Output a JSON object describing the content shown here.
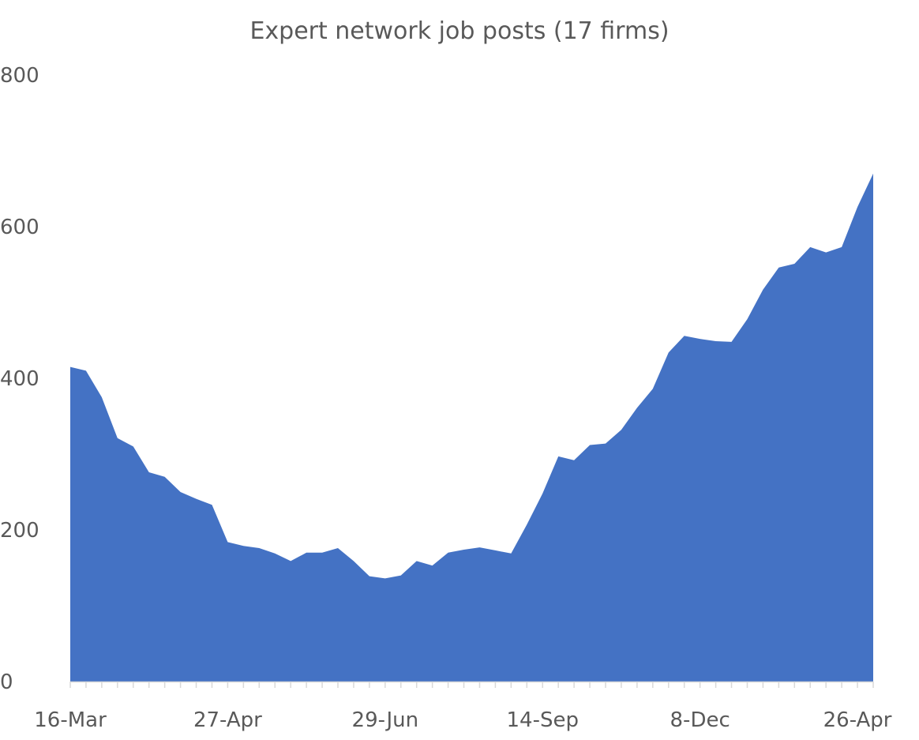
{
  "chart_data": {
    "type": "area",
    "title": "Expert network job posts (17 firms)",
    "xlabel": "",
    "ylabel": "",
    "ylim": [
      0,
      800
    ],
    "yticks": [
      "0",
      "200",
      "400",
      "600",
      "800"
    ],
    "x_tick_labels": [
      "16-Mar",
      "27-Apr",
      "29-Jun",
      "14-Sep",
      "8-Dec",
      "26-Apr"
    ],
    "x_tick_label_positions": [
      0,
      10,
      20,
      30,
      40,
      50
    ],
    "grid": false,
    "legend": "none",
    "color": "#4472C4",
    "values": [
      415,
      410,
      375,
      321,
      310,
      276,
      270,
      250,
      241,
      233,
      184,
      179,
      176,
      169,
      159,
      170,
      170,
      176,
      159,
      139,
      136,
      140,
      159,
      153,
      170,
      174,
      177,
      173,
      169,
      207,
      248,
      297,
      292,
      312,
      314,
      332,
      361,
      386,
      434,
      456,
      452,
      449,
      448,
      478,
      517,
      546,
      551,
      573,
      566,
      573,
      626,
      670
    ]
  }
}
